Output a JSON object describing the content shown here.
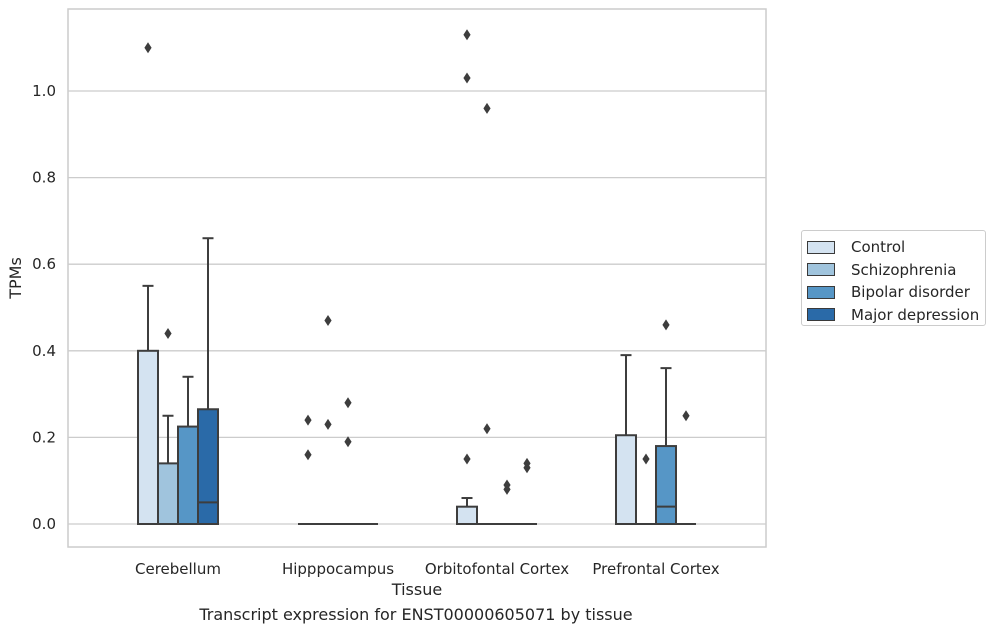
{
  "chart_data": {
    "type": "box",
    "title": "",
    "caption": "Transcript expression for ENST00000605071 by tissue",
    "xlabel": "Tissue",
    "ylabel": "TPMs",
    "ylim": [
      -0.055,
      1.195
    ],
    "yticks": [
      0.0,
      0.2,
      0.4,
      0.6,
      0.8,
      1.0
    ],
    "ytick_labels": [
      "0.0",
      "0.2",
      "0.4",
      "0.6",
      "0.8",
      "1.0"
    ],
    "grid": "horizontal",
    "legend_position": "right",
    "categories": [
      "Cerebellum",
      "Hipppocampus",
      "Orbitofontal Cortex",
      "Prefrontal Cortex"
    ],
    "series": [
      {
        "name": "Control",
        "color": "#d4e3f1",
        "boxes": [
          {
            "q1": 0,
            "median": 0,
            "q3": 0.4,
            "whisker_low": 0,
            "whisker_high": 0.55,
            "outliers": [
              1.1
            ]
          },
          {
            "q1": 0,
            "median": 0,
            "q3": 0,
            "whisker_low": 0,
            "whisker_high": 0,
            "outliers": [
              0.16,
              0.24
            ]
          },
          {
            "q1": 0,
            "median": 0,
            "q3": 0.04,
            "whisker_low": 0,
            "whisker_high": 0.06,
            "outliers": [
              0.15,
              1.03,
              1.13
            ]
          },
          {
            "q1": 0,
            "median": 0,
            "q3": 0.205,
            "whisker_low": 0,
            "whisker_high": 0.39,
            "outliers": []
          }
        ]
      },
      {
        "name": "Schizophrenia",
        "color": "#a0c4dd",
        "boxes": [
          {
            "q1": 0,
            "median": 0,
            "q3": 0.14,
            "whisker_low": 0,
            "whisker_high": 0.25,
            "outliers": [
              0.44
            ]
          },
          {
            "q1": 0,
            "median": 0,
            "q3": 0,
            "whisker_low": 0,
            "whisker_high": 0,
            "outliers": [
              0.23,
              0.47
            ]
          },
          {
            "q1": 0,
            "median": 0,
            "q3": 0,
            "whisker_low": 0,
            "whisker_high": 0,
            "outliers": [
              0.22,
              0.96
            ]
          },
          {
            "q1": 0,
            "median": 0,
            "q3": 0,
            "whisker_low": 0,
            "whisker_high": 0,
            "outliers": [
              0.15
            ]
          }
        ]
      },
      {
        "name": "Bipolar disorder",
        "color": "#5696c6",
        "boxes": [
          {
            "q1": 0,
            "median": 0,
            "q3": 0.225,
            "whisker_low": 0,
            "whisker_high": 0.34,
            "outliers": []
          },
          {
            "q1": 0,
            "median": 0,
            "q3": 0,
            "whisker_low": 0,
            "whisker_high": 0,
            "outliers": [
              0.19,
              0.28
            ]
          },
          {
            "q1": 0,
            "median": 0,
            "q3": 0,
            "whisker_low": 0,
            "whisker_high": 0,
            "outliers": [
              0.08,
              0.09
            ]
          },
          {
            "q1": 0,
            "median": 0.04,
            "q3": 0.18,
            "whisker_low": 0,
            "whisker_high": 0.36,
            "outliers": [
              0.46
            ]
          }
        ]
      },
      {
        "name": "Major depression",
        "color": "#2a6aa8",
        "boxes": [
          {
            "q1": 0,
            "median": 0.05,
            "q3": 0.265,
            "whisker_low": 0,
            "whisker_high": 0.66,
            "outliers": []
          },
          {
            "q1": 0,
            "median": 0,
            "q3": 0,
            "whisker_low": 0,
            "whisker_high": 0,
            "outliers": []
          },
          {
            "q1": 0,
            "median": 0,
            "q3": 0,
            "whisker_low": 0,
            "whisker_high": 0,
            "outliers": [
              0.13,
              0.14
            ]
          },
          {
            "q1": 0,
            "median": 0,
            "q3": 0,
            "whisker_low": 0,
            "whisker_high": 0,
            "outliers": [
              0.25
            ]
          }
        ]
      }
    ],
    "colors": {
      "grid": "#cccccc",
      "frame": "#cccccc",
      "line": "#3d3d3d"
    }
  }
}
